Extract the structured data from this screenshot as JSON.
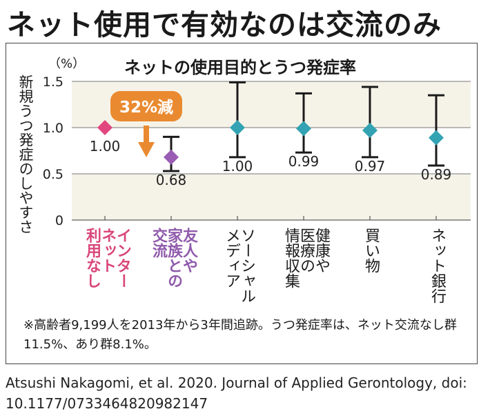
{
  "headline": "ネット使用で有効なのは交流のみ",
  "chart_data": {
    "type": "scatter",
    "title": "ネットの使用目的とうつ発症率",
    "unit": "（%）",
    "ylabel": "新規うつ発症のしやすさ",
    "ylim": [
      0,
      1.5
    ],
    "yticks": [
      "1.5",
      "1.0",
      "0.5",
      "0"
    ],
    "ytick_values": [
      1.5,
      1.0,
      0.5,
      0
    ],
    "grid": true,
    "callout": "32%減",
    "points": [
      {
        "label": "インターネット利用なし",
        "label_lines": [
          "インター",
          "ネット",
          "利用なし"
        ],
        "value": 1.0,
        "value_label": "1.00",
        "ci": null,
        "color": "#e2467e",
        "label_style": "pink"
      },
      {
        "label": "友人や家族との交流",
        "label_lines": [
          "友人や",
          "家族との",
          "交流"
        ],
        "value": 0.68,
        "value_label": "0.68",
        "ci": [
          0.53,
          0.9
        ],
        "color": "#9a5db3",
        "label_style": "purple"
      },
      {
        "label": "ソーシャルメディア",
        "label_lines": [
          "ソーシャル",
          "メディア"
        ],
        "value": 1.0,
        "value_label": "1.00",
        "ci": [
          0.68,
          1.49
        ],
        "color": "#33a3b3",
        "label_style": "black"
      },
      {
        "label": "健康や医療の情報収集",
        "label_lines": [
          "健康や",
          "医療の",
          "情報収集"
        ],
        "value": 0.99,
        "value_label": "0.99",
        "ci": [
          0.73,
          1.37
        ],
        "color": "#33a3b3",
        "label_style": "black"
      },
      {
        "label": "買い物",
        "label_lines": [
          "買い物"
        ],
        "value": 0.97,
        "value_label": "0.97",
        "ci": [
          0.68,
          1.44
        ],
        "color": "#33a3b3",
        "label_style": "black"
      },
      {
        "label": "ネット銀行",
        "label_lines": [
          "ネット銀行"
        ],
        "value": 0.89,
        "value_label": "0.89",
        "ci": [
          0.59,
          1.35
        ],
        "color": "#33a3b3",
        "label_style": "black"
      }
    ]
  },
  "footnote": "※高齢者9,199人を2013年から3年間追跡。うつ発症率は、ネット交流なし群11.5%、あり群8.1%。",
  "citation": "Atsushi Nakagomi, et al. 2020. Journal of Applied Gerontology, doi: 10.1177/0733464820982147",
  "colors": {
    "accent_orange": "#ea8a30",
    "band": "#f5f3e8",
    "axis": "#555555"
  }
}
